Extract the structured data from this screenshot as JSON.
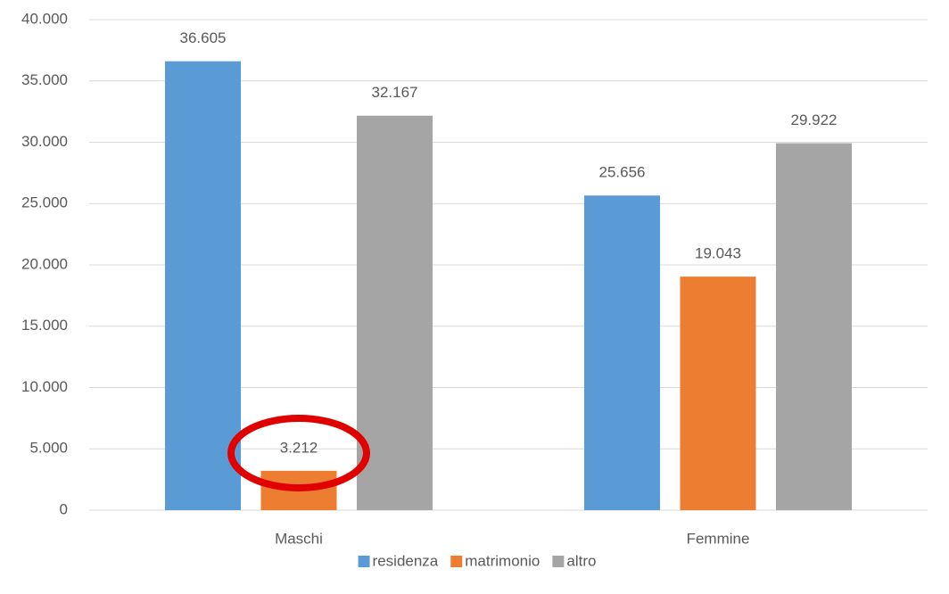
{
  "chart_data": {
    "type": "bar",
    "categories": [
      "Maschi",
      "Femmine"
    ],
    "series": [
      {
        "name": "residenza",
        "color": "#5b9bd5",
        "values": [
          36605,
          25656
        ],
        "value_labels": [
          "36.605",
          "25.656"
        ]
      },
      {
        "name": "matrimonio",
        "color": "#ed7d31",
        "values": [
          3212,
          19043
        ],
        "value_labels": [
          "3.212",
          "19.043"
        ]
      },
      {
        "name": "altro",
        "color": "#a5a5a5",
        "values": [
          32167,
          29922
        ],
        "value_labels": [
          "32.167",
          "29.922"
        ]
      }
    ],
    "ylim": [
      0,
      40000
    ],
    "yticks": [
      0,
      {
        "value": 5000,
        "label": "5.000"
      },
      {
        "value": 10000,
        "label": "10.000"
      },
      {
        "value": 15000,
        "label": "15.000"
      },
      {
        "value": 20000,
        "label": "20.000"
      },
      {
        "value": 25000,
        "label": "25.000"
      },
      {
        "value": 30000,
        "label": "30.000"
      },
      {
        "value": 35000,
        "label": "35.000"
      },
      {
        "value": 40000,
        "label": "40.000"
      }
    ],
    "grid": true,
    "legend": "bottom"
  }
}
